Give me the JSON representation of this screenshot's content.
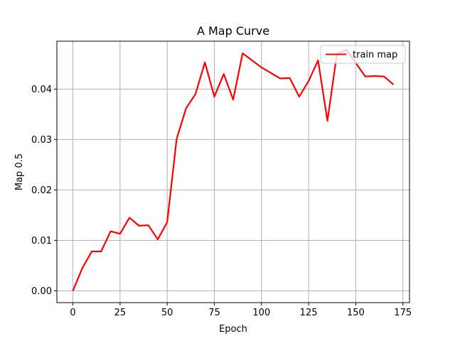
{
  "chart_data": {
    "type": "line",
    "title": "A Map Curve",
    "xlabel": "Epoch",
    "ylabel": "Map 0.5",
    "xlim": [
      -8.5,
      178.5
    ],
    "ylim": [
      -0.00235,
      0.0495
    ],
    "xticks": [
      0,
      25,
      50,
      75,
      100,
      125,
      150,
      175
    ],
    "xtick_labels": [
      "0",
      "25",
      "50",
      "75",
      "100",
      "125",
      "150",
      "175"
    ],
    "yticks": [
      0.0,
      0.01,
      0.02,
      0.03,
      0.04
    ],
    "ytick_labels": [
      "0.00",
      "0.01",
      "0.02",
      "0.03",
      "0.04"
    ],
    "grid": true,
    "legend_position": "top-right",
    "series": [
      {
        "name": "train map",
        "color": "#ff0000",
        "x": [
          0,
          5,
          10,
          15,
          20,
          25,
          30,
          35,
          40,
          45,
          50,
          55,
          60,
          65,
          70,
          75,
          80,
          85,
          90,
          95,
          100,
          105,
          110,
          115,
          120,
          125,
          130,
          135,
          140,
          145,
          150,
          155,
          160,
          165,
          170
        ],
        "y": [
          0.0,
          0.0045,
          0.0078,
          0.0078,
          0.0118,
          0.0113,
          0.0145,
          0.0129,
          0.013,
          0.0102,
          0.0136,
          0.0301,
          0.0362,
          0.039,
          0.0453,
          0.0385,
          0.043,
          0.0379,
          0.0471,
          0.0457,
          0.0443,
          0.0432,
          0.0421,
          0.0422,
          0.0385,
          0.0416,
          0.0457,
          0.0337,
          0.047,
          0.0478,
          0.0452,
          0.0425,
          0.0426,
          0.0425,
          0.0409
        ]
      }
    ]
  }
}
